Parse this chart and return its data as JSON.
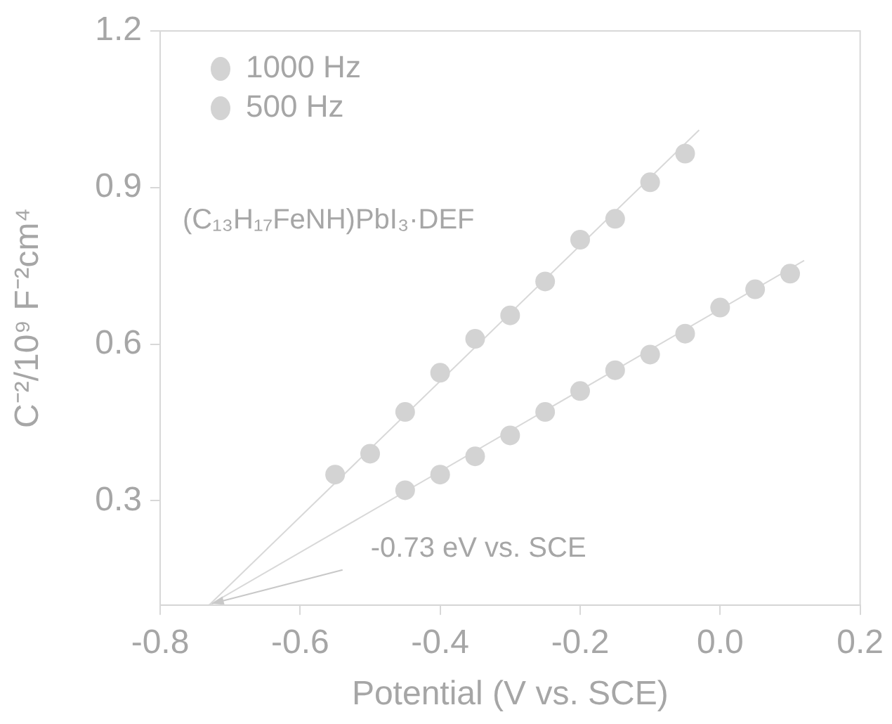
{
  "chart_data": {
    "type": "scatter",
    "xlabel": "Potential (V vs. SCE)",
    "ylabel": "C⁻²/10⁹ F⁻²cm⁴",
    "xlim": [
      -0.8,
      0.2
    ],
    "xticks": [
      -0.8,
      -0.6,
      -0.4,
      -0.2,
      {
        "value": 0,
        "label": "0.0"
      },
      0.2
    ],
    "ylim": [
      0.1,
      1.2
    ],
    "yticks": [
      0.3,
      0.6,
      0.9,
      1.2
    ],
    "grid": false,
    "legend": "top left",
    "marker": "circle",
    "series": [
      {
        "name": "1000 Hz",
        "color": "#d3d3d3",
        "x": [
          -0.55,
          -0.5,
          -0.45,
          -0.4,
          -0.35,
          -0.3,
          -0.25,
          -0.2,
          -0.15,
          -0.1,
          -0.05
        ],
        "values": [
          0.35,
          0.39,
          0.47,
          0.545,
          0.61,
          0.655,
          0.72,
          0.8,
          0.84,
          0.91,
          0.965
        ]
      },
      {
        "name": "500 Hz",
        "color": "#d3d3d3",
        "x": [
          -0.45,
          -0.4,
          -0.35,
          -0.3,
          -0.25,
          -0.2,
          -0.15,
          -0.1,
          -0.05,
          0.0,
          0.05,
          0.1
        ],
        "values": [
          0.32,
          0.35,
          0.385,
          0.425,
          0.47,
          0.51,
          0.55,
          0.58,
          0.62,
          0.67,
          0.705,
          0.735
        ]
      },
      {
        "type": "line",
        "color": "#d8d8d8",
        "marker": "none",
        "x": [
          -0.73,
          -0.03
        ],
        "values": [
          0.1,
          1.01
        ]
      },
      {
        "type": "line",
        "color": "#d8d8d8",
        "marker": "none",
        "x": [
          -0.73,
          0.12
        ],
        "values": [
          0.1,
          0.76
        ]
      }
    ],
    "annotations": [
      "(C₁₃H₁₇FeNH)PbI₃·DEF",
      {
        "text": "-0.73 eV vs. SCE",
        "x": -0.73,
        "y": 0.1
      }
    ]
  }
}
